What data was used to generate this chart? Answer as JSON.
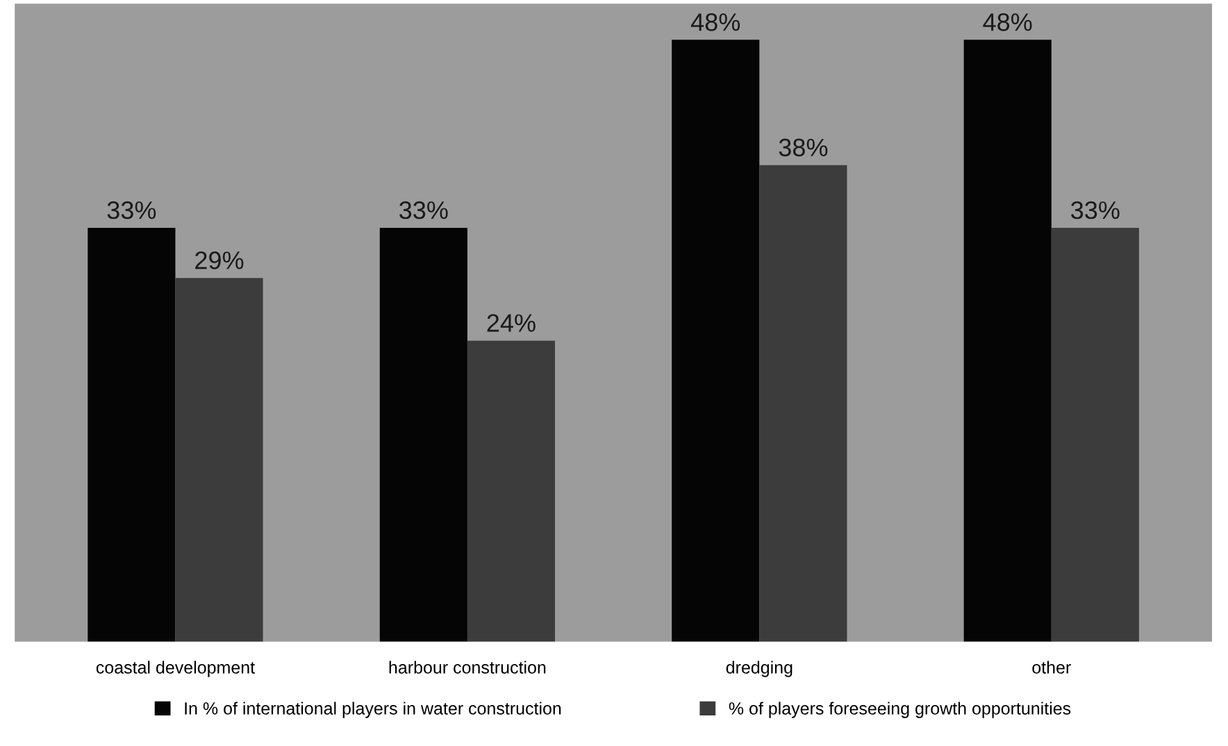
{
  "chart_data": {
    "type": "bar",
    "categories": [
      "coastal development",
      "harbour construction",
      "dredging",
      "other"
    ],
    "series": [
      {
        "name": "In % of international players in water construction",
        "color": "#050505",
        "values": [
          33,
          33,
          48,
          48
        ],
        "value_labels": [
          "33%",
          "33%",
          "48%",
          "48%"
        ]
      },
      {
        "name": "% of players foreseeing growth opportunities",
        "color": "#3c3c3c",
        "values": [
          29,
          24,
          38,
          33
        ],
        "value_labels": [
          "29%",
          "24%",
          "38%",
          "33%"
        ]
      }
    ],
    "legend": "bottom",
    "grid": false,
    "tick_labels": "x"
  }
}
